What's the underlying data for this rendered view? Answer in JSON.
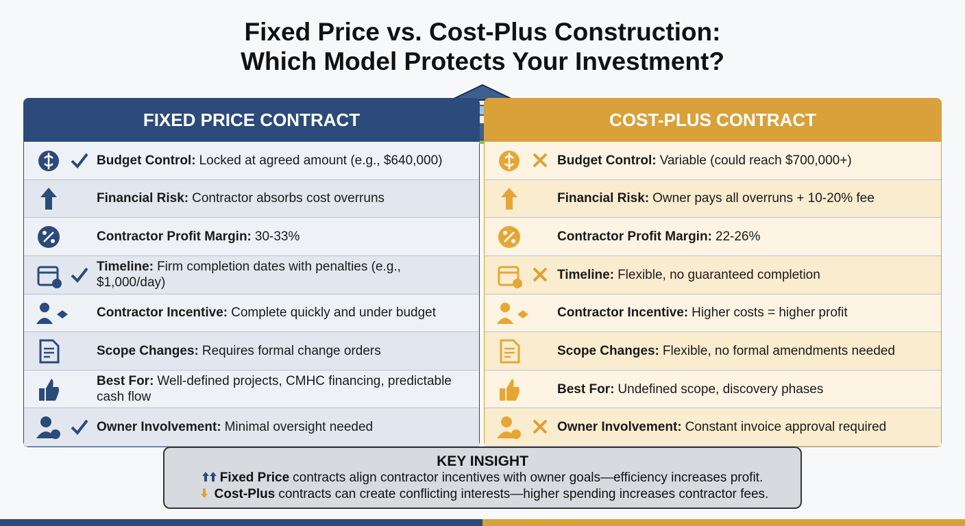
{
  "title": {
    "line1": "Fixed Price vs. Cost-Plus Construction:",
    "line2": "Which Model Protects Your Investment?"
  },
  "columns": [
    {
      "header": "FIXED PRICE CONTRACT",
      "rows": [
        {
          "label": "Budget Control:",
          "text": "Locked at agreed amount (e.g., $640,000)"
        },
        {
          "label": "Financial Risk:",
          "text": "Contractor absorbs cost overruns"
        },
        {
          "label": "Contractor Profit Margin:",
          "text": "30-33%"
        },
        {
          "label": "Timeline:",
          "text": "Firm completion dates with penalties (e.g., $1,000/day)"
        },
        {
          "label": "Contractor Incentive:",
          "text": "Complete quickly and under budget"
        },
        {
          "label": "Scope Changes:",
          "text": "Requires formal change orders"
        },
        {
          "label": "Best For:",
          "text": "Well-defined projects, CMHC financing, predictable cash flow"
        },
        {
          "label": "Owner Involvement:",
          "text": "Minimal oversight needed"
        }
      ]
    },
    {
      "header": "COST-PLUS CONTRACT",
      "rows": [
        {
          "label": "Budget Control:",
          "text": "Variable (could reach $700,000+)"
        },
        {
          "label": "Financial Risk:",
          "text": "Owner pays all overruns + 10-20% fee"
        },
        {
          "label": "Contractor Profit Margin:",
          "text": "22-26%"
        },
        {
          "label": "Timeline:",
          "text": "Flexible, no guaranteed completion"
        },
        {
          "label": "Contractor Incentive:",
          "text": "Higher costs = higher profit"
        },
        {
          "label": "Scope Changes:",
          "text": "Flexible, no formal amendments needed"
        },
        {
          "label": "Best For:",
          "text": "Undefined scope, discovery phases"
        },
        {
          "label": "Owner Involvement:",
          "text": "Constant invoice approval required"
        }
      ]
    }
  ],
  "key_insight": {
    "title": "KEY INSIGHT",
    "lines": [
      {
        "bold": "Fixed Price",
        "text": "contracts align contractor incentives with owner goals—efficiency increases profit."
      },
      {
        "bold": "Cost-Plus",
        "text": "contracts can create conflicting interests—higher spending increases contractor fees."
      }
    ]
  }
}
